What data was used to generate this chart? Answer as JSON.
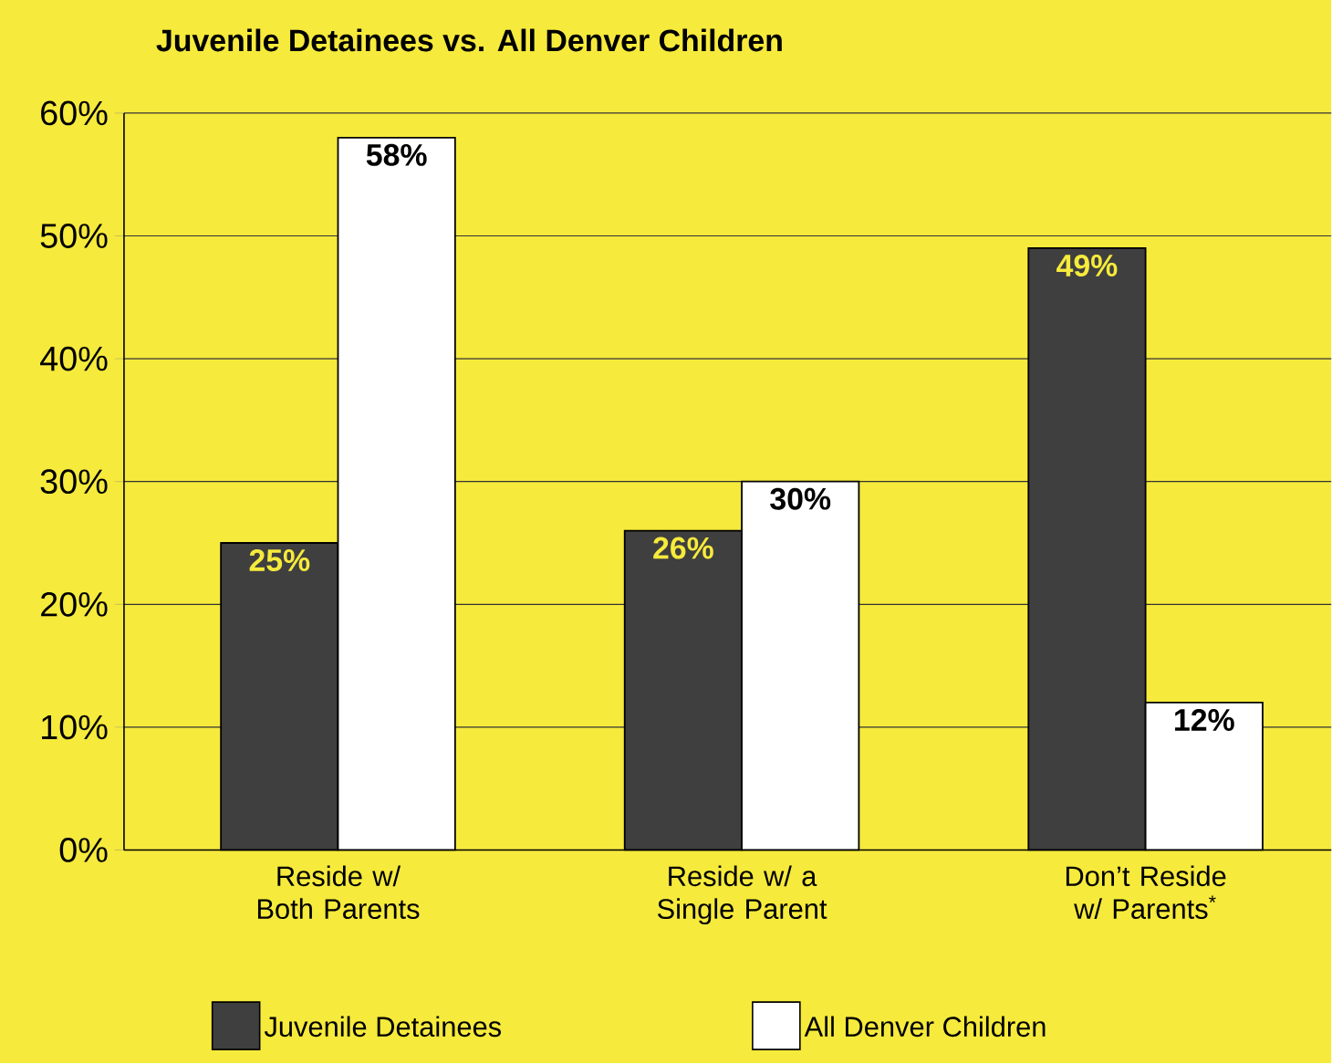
{
  "chart_data": {
    "type": "bar",
    "title": "Juvenile Detainees vs. All Denver Children",
    "categories": [
      "Reside w/ Both Parents",
      "Reside w/ a Single Parent",
      "Don’t Reside w/ Parents$^{*}$"
    ],
    "series": [
      {
        "name": "Juvenile Detainees",
        "color": "#3f3f3f",
        "values": [
          25,
          26,
          49
        ],
        "value_labels": [
          "25%",
          "26%",
          "49%"
        ]
      },
      {
        "name": "All Denver Children",
        "color": "#ffffff",
        "values": [
          58,
          30,
          12
        ],
        "value_labels": [
          "58%",
          "30%",
          "12%"
        ]
      }
    ],
    "ylim": [
      0,
      60
    ],
    "yticks": [
      {
        "value": 0,
        "label": "0%"
      },
      {
        "value": 10,
        "label": "10%"
      },
      {
        "value": 20,
        "label": "20%"
      },
      {
        "value": 30,
        "label": "30%"
      },
      {
        "value": 40,
        "label": "40%"
      },
      {
        "value": 50,
        "label": "50%"
      },
      {
        "value": 60,
        "label": "60%"
      }
    ],
    "grid": "y",
    "legend": "bottom"
  }
}
